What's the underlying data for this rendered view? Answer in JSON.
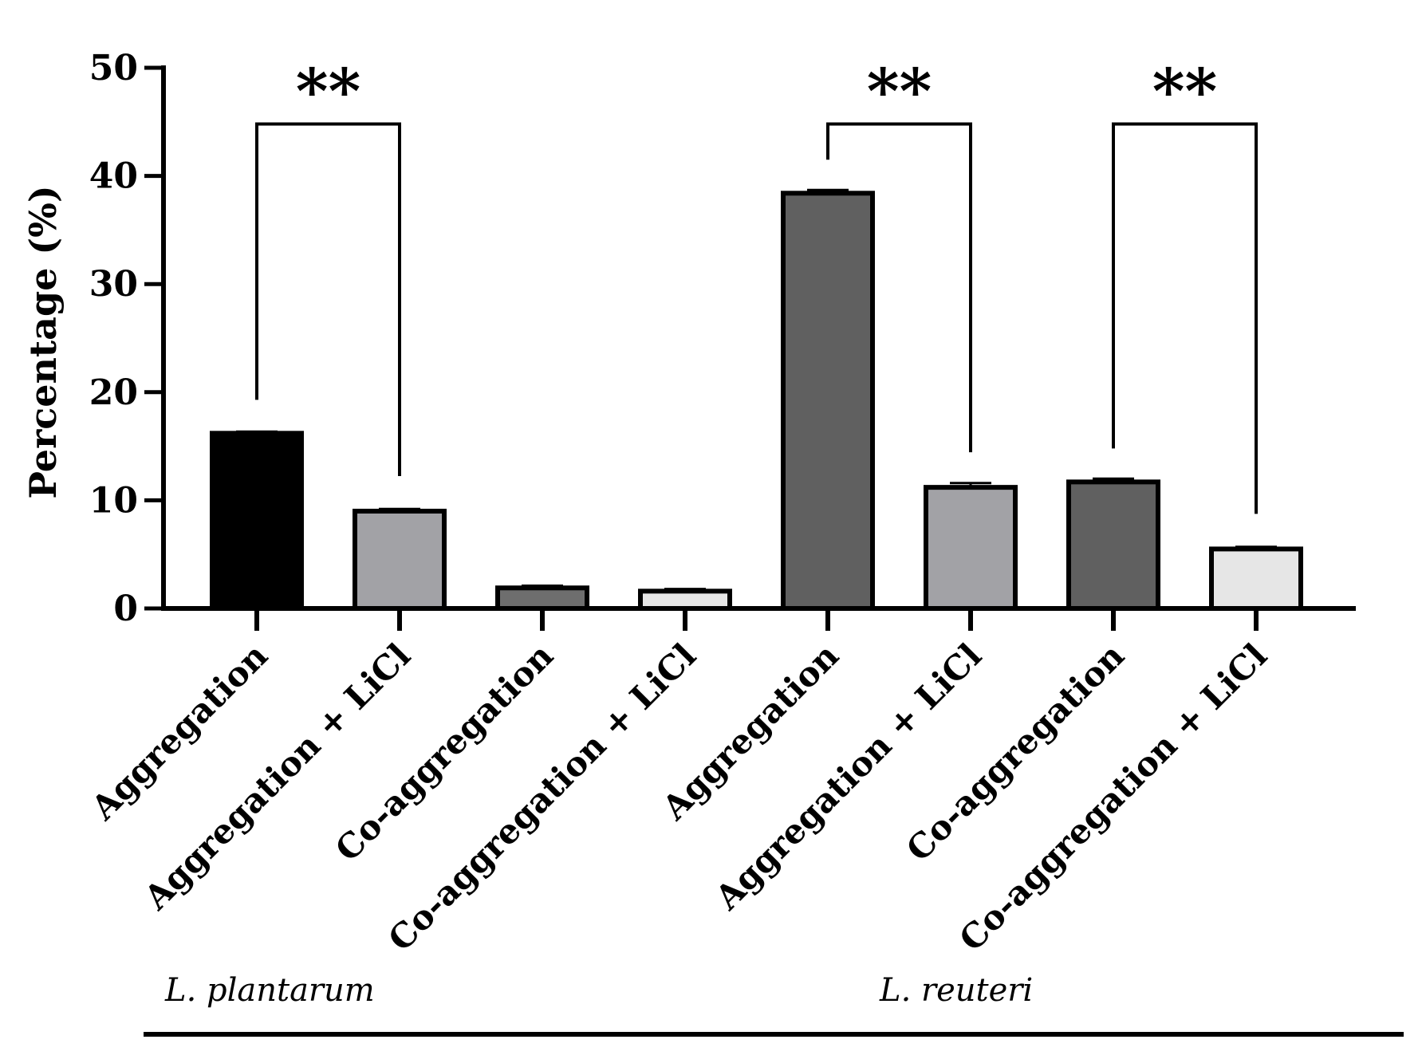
{
  "chart_data": {
    "type": "bar",
    "title": "",
    "xlabel": "",
    "ylabel": "Percentage (%)",
    "ylim": [
      0,
      50
    ],
    "yticks": [
      0,
      10,
      20,
      30,
      40,
      50
    ],
    "grid": false,
    "categories": [
      "Aggregation",
      "Aggregation + LiCl",
      "Co-aggregation",
      "Co-aggregation + LiCl",
      "Aggregation",
      "Aggregation + LiCl",
      "Co-aggregation",
      "Co-aggregation + LiCl"
    ],
    "values": [
      16.2,
      9.0,
      1.9,
      1.6,
      38.4,
      11.2,
      11.7,
      5.5
    ],
    "errors": [
      0.15,
      0.2,
      0.2,
      0.2,
      0.3,
      0.4,
      0.3,
      0.2
    ],
    "bar_colors": [
      "#000000",
      "#a2a2a6",
      "#6e6e6e",
      "#e6e6e6",
      "#606060",
      "#a2a2a6",
      "#606060",
      "#e6e6e6"
    ],
    "groups": [
      {
        "label": "L. plantarum",
        "from": 0,
        "to": 3
      },
      {
        "label": "L. reuteri",
        "from": 4,
        "to": 7
      }
    ],
    "significance": [
      {
        "a": 0,
        "b": 1,
        "label": "**",
        "bracket_y": 44.8
      },
      {
        "a": 4,
        "b": 5,
        "label": "**",
        "bracket_y": 44.8
      },
      {
        "a": 6,
        "b": 7,
        "label": "**",
        "bracket_y": 44.8
      }
    ]
  }
}
